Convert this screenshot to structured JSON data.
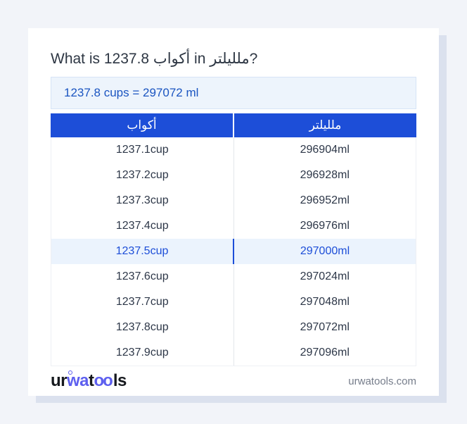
{
  "colors": {
    "header_blue": "#1d4ed8",
    "answer_blue": "#1b55c1",
    "highlight_bg": "#ebf3fd",
    "logo_accent": "#5d5fef",
    "page_bg": "#f2f4f9"
  },
  "header": {
    "title": "What is 1237.8 أكواب in ملليلتر?"
  },
  "answer": {
    "text": "1237.8 cups = 297072 ml"
  },
  "conversion_table": {
    "columns": [
      "أكواب",
      "ملليلتر"
    ],
    "rows": [
      {
        "cups": "1237.1cup",
        "ml": "296904ml",
        "highlighted": false
      },
      {
        "cups": "1237.2cup",
        "ml": "296928ml",
        "highlighted": false
      },
      {
        "cups": "1237.3cup",
        "ml": "296952ml",
        "highlighted": false
      },
      {
        "cups": "1237.4cup",
        "ml": "296976ml",
        "highlighted": false
      },
      {
        "cups": "1237.5cup",
        "ml": "297000ml",
        "highlighted": true
      },
      {
        "cups": "1237.6cup",
        "ml": "297024ml",
        "highlighted": false
      },
      {
        "cups": "1237.7cup",
        "ml": "297048ml",
        "highlighted": false
      },
      {
        "cups": "1237.8cup",
        "ml": "297072ml",
        "highlighted": false
      },
      {
        "cups": "1237.9cup",
        "ml": "297096ml",
        "highlighted": false
      }
    ]
  },
  "footer": {
    "logo": {
      "seg1": "ur",
      "seg2": "wa",
      "seg3": "t",
      "seg4": "oo",
      "seg5": "ls"
    },
    "site_domain": "urwatools.com"
  }
}
